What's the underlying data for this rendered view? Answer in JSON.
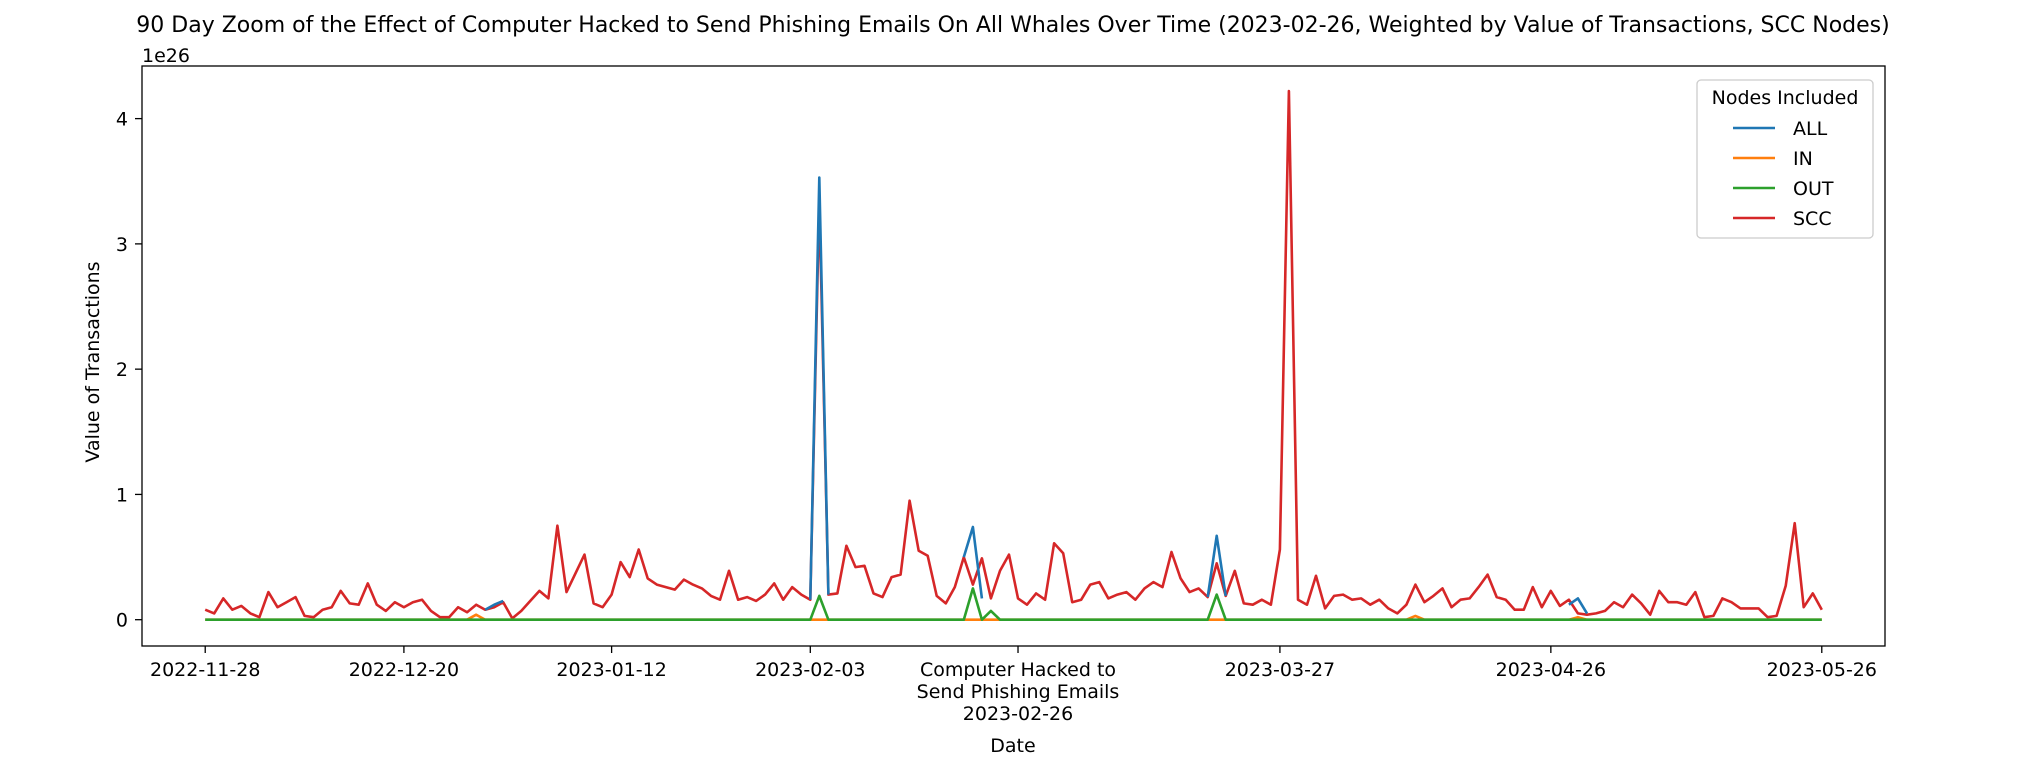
{
  "chart_data": {
    "type": "line",
    "title": "90 Day Zoom of the Effect of Computer Hacked to Send Phishing Emails On All Whales Over Time (2023-02-26, Weighted by Value of Transactions, SCC Nodes)",
    "xlabel": "Date",
    "ylabel": "Value of Transactions",
    "y_multiplier_label": "1e26",
    "y_unit": 1e+26,
    "xlim": [
      "2022-11-21",
      "2023-06-02"
    ],
    "ylim": [
      -0.21,
      4.42
    ],
    "x_tick_labels": [
      "2022-11-28",
      "2022-12-20",
      "2023-01-12",
      "2023-02-03",
      "2023-03-27",
      "2023-04-26",
      "2023-05-26"
    ],
    "event": {
      "date": "2023-02-26",
      "label": [
        "Computer Hacked to",
        "Send Phishing Emails",
        "2023-02-26"
      ]
    },
    "y_ticks": [
      "0",
      "1",
      "2",
      "3",
      "4"
    ],
    "grid": false,
    "legend": {
      "title": "Nodes Included",
      "position": "top-right"
    },
    "series": [
      {
        "name": "SCC",
        "color": "#d62728",
        "points": [
          [
            "2022-11-28",
            0.08
          ],
          [
            "2022-11-29",
            0.05
          ],
          [
            "2022-11-30",
            0.17
          ],
          [
            "2022-12-01",
            0.08
          ],
          [
            "2022-12-02",
            0.11
          ],
          [
            "2022-12-03",
            0.05
          ],
          [
            "2022-12-04",
            0.02
          ],
          [
            "2022-12-05",
            0.22
          ],
          [
            "2022-12-06",
            0.1
          ],
          [
            "2022-12-07",
            0.14
          ],
          [
            "2022-12-08",
            0.18
          ],
          [
            "2022-12-09",
            0.03
          ],
          [
            "2022-12-10",
            0.02
          ],
          [
            "2022-12-11",
            0.08
          ],
          [
            "2022-12-12",
            0.1
          ],
          [
            "2022-12-13",
            0.23
          ],
          [
            "2022-12-14",
            0.13
          ],
          [
            "2022-12-15",
            0.12
          ],
          [
            "2022-12-16",
            0.29
          ],
          [
            "2022-12-17",
            0.12
          ],
          [
            "2022-12-18",
            0.07
          ],
          [
            "2022-12-19",
            0.14
          ],
          [
            "2022-12-20",
            0.1
          ],
          [
            "2022-12-21",
            0.14
          ],
          [
            "2022-12-22",
            0.16
          ],
          [
            "2022-12-23",
            0.07
          ],
          [
            "2022-12-24",
            0.02
          ],
          [
            "2022-12-25",
            0.02
          ],
          [
            "2022-12-26",
            0.1
          ],
          [
            "2022-12-27",
            0.06
          ],
          [
            "2022-12-28",
            0.12
          ],
          [
            "2022-12-29",
            0.08
          ],
          [
            "2022-12-30",
            0.1
          ],
          [
            "2022-12-31",
            0.14
          ],
          [
            "2023-01-01",
            0.01
          ],
          [
            "2023-01-02",
            0.07
          ],
          [
            "2023-01-03",
            0.15
          ],
          [
            "2023-01-04",
            0.23
          ],
          [
            "2023-01-05",
            0.17
          ],
          [
            "2023-01-06",
            0.75
          ],
          [
            "2023-01-07",
            0.22
          ],
          [
            "2023-01-08",
            0.37
          ],
          [
            "2023-01-09",
            0.52
          ],
          [
            "2023-01-10",
            0.13
          ],
          [
            "2023-01-11",
            0.1
          ],
          [
            "2023-01-12",
            0.2
          ],
          [
            "2023-01-13",
            0.46
          ],
          [
            "2023-01-14",
            0.34
          ],
          [
            "2023-01-15",
            0.56
          ],
          [
            "2023-01-16",
            0.33
          ],
          [
            "2023-01-17",
            0.28
          ],
          [
            "2023-01-18",
            0.26
          ],
          [
            "2023-01-19",
            0.24
          ],
          [
            "2023-01-20",
            0.32
          ],
          [
            "2023-01-21",
            0.28
          ],
          [
            "2023-01-22",
            0.25
          ],
          [
            "2023-01-23",
            0.19
          ],
          [
            "2023-01-24",
            0.16
          ],
          [
            "2023-01-25",
            0.39
          ],
          [
            "2023-01-26",
            0.16
          ],
          [
            "2023-01-27",
            0.18
          ],
          [
            "2023-01-28",
            0.15
          ],
          [
            "2023-01-29",
            0.2
          ],
          [
            "2023-01-30",
            0.29
          ],
          [
            "2023-01-31",
            0.16
          ],
          [
            "2023-02-01",
            0.26
          ],
          [
            "2023-02-02",
            0.2
          ],
          [
            "2023-02-03",
            0.16
          ],
          [
            "2023-02-04",
            3.36
          ],
          [
            "2023-02-05",
            0.2
          ],
          [
            "2023-02-06",
            0.21
          ],
          [
            "2023-02-07",
            0.59
          ],
          [
            "2023-02-08",
            0.42
          ],
          [
            "2023-02-09",
            0.43
          ],
          [
            "2023-02-10",
            0.21
          ],
          [
            "2023-02-11",
            0.18
          ],
          [
            "2023-02-12",
            0.34
          ],
          [
            "2023-02-13",
            0.36
          ],
          [
            "2023-02-14",
            0.95
          ],
          [
            "2023-02-15",
            0.55
          ],
          [
            "2023-02-16",
            0.51
          ],
          [
            "2023-02-17",
            0.19
          ],
          [
            "2023-02-18",
            0.13
          ],
          [
            "2023-02-19",
            0.26
          ],
          [
            "2023-02-20",
            0.5
          ],
          [
            "2023-02-21",
            0.28
          ],
          [
            "2023-02-22",
            0.49
          ],
          [
            "2023-02-23",
            0.17
          ],
          [
            "2023-02-24",
            0.39
          ],
          [
            "2023-02-25",
            0.52
          ],
          [
            "2023-02-26",
            0.17
          ],
          [
            "2023-02-27",
            0.12
          ],
          [
            "2023-02-28",
            0.21
          ],
          [
            "2023-03-01",
            0.16
          ],
          [
            "2023-03-02",
            0.61
          ],
          [
            "2023-03-03",
            0.53
          ],
          [
            "2023-03-04",
            0.14
          ],
          [
            "2023-03-05",
            0.16
          ],
          [
            "2023-03-06",
            0.28
          ],
          [
            "2023-03-07",
            0.3
          ],
          [
            "2023-03-08",
            0.17
          ],
          [
            "2023-03-09",
            0.2
          ],
          [
            "2023-03-10",
            0.22
          ],
          [
            "2023-03-11",
            0.16
          ],
          [
            "2023-03-12",
            0.25
          ],
          [
            "2023-03-13",
            0.3
          ],
          [
            "2023-03-14",
            0.26
          ],
          [
            "2023-03-15",
            0.54
          ],
          [
            "2023-03-16",
            0.33
          ],
          [
            "2023-03-17",
            0.22
          ],
          [
            "2023-03-18",
            0.25
          ],
          [
            "2023-03-19",
            0.18
          ],
          [
            "2023-03-20",
            0.45
          ],
          [
            "2023-03-21",
            0.19
          ],
          [
            "2023-03-22",
            0.39
          ],
          [
            "2023-03-23",
            0.13
          ],
          [
            "2023-03-24",
            0.12
          ],
          [
            "2023-03-25",
            0.16
          ],
          [
            "2023-03-26",
            0.12
          ],
          [
            "2023-03-27",
            0.56
          ],
          [
            "2023-03-28",
            4.22
          ],
          [
            "2023-03-29",
            0.16
          ],
          [
            "2023-03-30",
            0.12
          ],
          [
            "2023-03-31",
            0.35
          ],
          [
            "2023-04-01",
            0.09
          ],
          [
            "2023-04-02",
            0.19
          ],
          [
            "2023-04-03",
            0.2
          ],
          [
            "2023-04-04",
            0.16
          ],
          [
            "2023-04-05",
            0.17
          ],
          [
            "2023-04-06",
            0.12
          ],
          [
            "2023-04-07",
            0.16
          ],
          [
            "2023-04-08",
            0.09
          ],
          [
            "2023-04-09",
            0.05
          ],
          [
            "2023-04-10",
            0.12
          ],
          [
            "2023-04-11",
            0.28
          ],
          [
            "2023-04-12",
            0.14
          ],
          [
            "2023-04-13",
            0.19
          ],
          [
            "2023-04-14",
            0.25
          ],
          [
            "2023-04-15",
            0.1
          ],
          [
            "2023-04-16",
            0.16
          ],
          [
            "2023-04-17",
            0.17
          ],
          [
            "2023-04-18",
            0.26
          ],
          [
            "2023-04-19",
            0.36
          ],
          [
            "2023-04-20",
            0.18
          ],
          [
            "2023-04-21",
            0.16
          ],
          [
            "2023-04-22",
            0.08
          ],
          [
            "2023-04-23",
            0.08
          ],
          [
            "2023-04-24",
            0.26
          ],
          [
            "2023-04-25",
            0.1
          ],
          [
            "2023-04-26",
            0.23
          ],
          [
            "2023-04-27",
            0.11
          ],
          [
            "2023-04-28",
            0.16
          ],
          [
            "2023-04-29",
            0.05
          ],
          [
            "2023-04-30",
            0.04
          ],
          [
            "2023-05-01",
            0.05
          ],
          [
            "2023-05-02",
            0.07
          ],
          [
            "2023-05-03",
            0.14
          ],
          [
            "2023-05-04",
            0.1
          ],
          [
            "2023-05-05",
            0.2
          ],
          [
            "2023-05-06",
            0.13
          ],
          [
            "2023-05-07",
            0.04
          ],
          [
            "2023-05-08",
            0.23
          ],
          [
            "2023-05-09",
            0.14
          ],
          [
            "2023-05-10",
            0.14
          ],
          [
            "2023-05-11",
            0.12
          ],
          [
            "2023-05-12",
            0.22
          ],
          [
            "2023-05-13",
            0.02
          ],
          [
            "2023-05-14",
            0.03
          ],
          [
            "2023-05-15",
            0.17
          ],
          [
            "2023-05-16",
            0.14
          ],
          [
            "2023-05-17",
            0.09
          ],
          [
            "2023-05-18",
            0.09
          ],
          [
            "2023-05-19",
            0.09
          ],
          [
            "2023-05-20",
            0.02
          ],
          [
            "2023-05-21",
            0.03
          ],
          [
            "2023-05-22",
            0.27
          ],
          [
            "2023-05-23",
            0.77
          ],
          [
            "2023-05-24",
            0.1
          ],
          [
            "2023-05-25",
            0.21
          ],
          [
            "2023-05-26",
            0.08
          ]
        ]
      },
      {
        "name": "IN",
        "color": "#ff7f0e",
        "points": [
          [
            "2022-11-28",
            0
          ],
          [
            "2022-12-27",
            0
          ],
          [
            "2022-12-28",
            0.04
          ],
          [
            "2022-12-29",
            0
          ],
          [
            "2023-02-26",
            0
          ],
          [
            "2023-04-10",
            0
          ],
          [
            "2023-04-11",
            0.03
          ],
          [
            "2023-04-12",
            0
          ],
          [
            "2023-04-28",
            0
          ],
          [
            "2023-04-29",
            0.02
          ],
          [
            "2023-04-30",
            0
          ],
          [
            "2023-05-26",
            0
          ]
        ]
      },
      {
        "name": "OUT",
        "color": "#2ca02c",
        "points": [
          [
            "2022-11-28",
            0
          ],
          [
            "2023-02-03",
            0
          ],
          [
            "2023-02-04",
            0.19
          ],
          [
            "2023-02-05",
            0
          ],
          [
            "2023-02-20",
            0
          ],
          [
            "2023-02-21",
            0.25
          ],
          [
            "2023-02-22",
            0
          ],
          [
            "2023-02-23",
            0.07
          ],
          [
            "2023-02-24",
            0
          ],
          [
            "2023-03-19",
            0
          ],
          [
            "2023-03-20",
            0.2
          ],
          [
            "2023-03-21",
            0
          ],
          [
            "2023-05-26",
            0
          ]
        ]
      },
      {
        "name": "ALL",
        "color": "#1f77b4",
        "points": [
          [
            "2023-02-03",
            0.16
          ],
          [
            "2023-02-04",
            3.53
          ],
          [
            "2023-02-05",
            0.2
          ],
          [
            "2023-02-20",
            0.5
          ],
          [
            "2023-02-21",
            0.74
          ],
          [
            "2023-02-22",
            0.17
          ],
          [
            "2023-03-19",
            0.18
          ],
          [
            "2023-03-20",
            0.67
          ],
          [
            "2023-03-21",
            0.19
          ],
          [
            "2022-12-29",
            0.08
          ],
          [
            "2022-12-30",
            0.12
          ],
          [
            "2022-12-31",
            0.15
          ],
          [
            "2023-04-28",
            0.12
          ],
          [
            "2023-04-29",
            0.17
          ],
          [
            "2023-04-30",
            0.05
          ]
        ]
      }
    ]
  }
}
